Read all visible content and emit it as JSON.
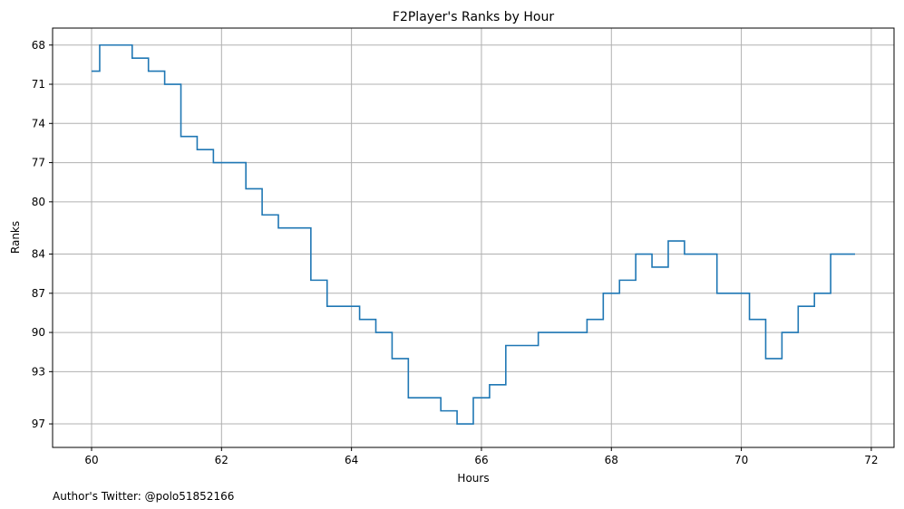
{
  "chart_data": {
    "type": "line",
    "drawstyle": "steps-mid",
    "title": "F2Player's Ranks by Hour",
    "xlabel": "Hours",
    "ylabel": "Ranks",
    "xlim": [
      59.4,
      72.35
    ],
    "ylim": [
      98.8,
      66.7
    ],
    "y_inverted": true,
    "x_ticks": [
      60,
      62,
      64,
      66,
      68,
      70,
      72
    ],
    "x_tick_labels": [
      "60",
      "62",
      "64",
      "66",
      "68",
      "70",
      "72"
    ],
    "y_ticks": [
      68,
      71,
      74,
      77,
      80,
      84,
      87,
      90,
      93,
      97
    ],
    "y_tick_labels": [
      "68",
      "71",
      "74",
      "77",
      "80",
      "84",
      "87",
      "90",
      "93",
      "97"
    ],
    "grid": true,
    "line_color": "#1f77b4",
    "series": [
      {
        "x": [
          60.0,
          60.25,
          60.5,
          60.75,
          61.0,
          61.25,
          61.5,
          61.75,
          62.0,
          62.25,
          62.5,
          62.75,
          63.0,
          63.25,
          63.5,
          63.75,
          64.0,
          64.25,
          64.5,
          64.75,
          65.0,
          65.25,
          65.5,
          65.75,
          66.0,
          66.25,
          66.5,
          66.75,
          67.0,
          67.25,
          67.5,
          67.75,
          68.0,
          68.25,
          68.5,
          68.75,
          69.0,
          69.25,
          69.5,
          69.75,
          70.0,
          70.25,
          70.5,
          70.75,
          71.0,
          71.25,
          71.5,
          71.75
        ],
        "y": [
          70,
          68,
          68,
          69,
          70,
          71,
          75,
          76,
          77,
          77,
          79,
          81,
          82,
          82,
          86,
          88,
          88,
          89,
          90,
          92,
          95,
          95,
          96,
          97,
          95,
          94,
          91,
          91,
          90,
          90,
          90,
          89,
          87,
          86,
          84,
          85,
          83,
          84,
          84,
          87,
          87,
          89,
          92,
          90,
          88,
          87,
          84,
          84
        ]
      }
    ]
  },
  "credit": "Author's Twitter: @polo51852166"
}
